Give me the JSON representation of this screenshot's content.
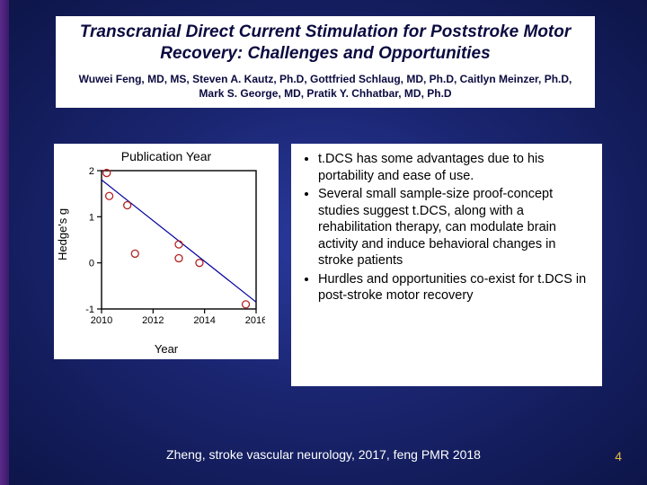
{
  "colors": {
    "bg_center": "#2a3a9e",
    "bg_mid": "#1a2570",
    "bg_edge": "#0d1548",
    "leftbar_a": "#5a2a8a",
    "leftbar_b": "#3a1a6a",
    "panel_bg": "#ffffff",
    "title_text": "#0a0a40",
    "body_text": "#000000",
    "footer_text": "#ffffff",
    "pagenum_text": "#e6b847",
    "chart_marker": "#b22222",
    "chart_line": "#0000a0",
    "chart_axis": "#000000"
  },
  "header": {
    "title": "Transcranial Direct Current Stimulation for Poststroke Motor Recovery: Challenges and Opportunities",
    "authors": "Wuwei Feng, MD, MS, Steven A. Kautz, Ph.D, Gottfried Schlaug, MD, Ph.D, Caitlyn Meinzer, Ph.D, Mark S. George, MD, Pratik Y. Chhatbar, MD, Ph.D"
  },
  "chart": {
    "type": "scatter",
    "title": "Publication Year",
    "xlabel": "Year",
    "ylabel": "Hedge's g",
    "xlim": [
      2010,
      2016
    ],
    "ylim": [
      -1,
      2
    ],
    "xticks": [
      2010,
      2012,
      2014,
      2016
    ],
    "yticks": [
      -1,
      0,
      1,
      2
    ],
    "points": [
      {
        "x": 2010.2,
        "y": 1.95
      },
      {
        "x": 2010.3,
        "y": 1.45
      },
      {
        "x": 2011.0,
        "y": 1.25
      },
      {
        "x": 2011.3,
        "y": 0.2
      },
      {
        "x": 2013.0,
        "y": 0.4
      },
      {
        "x": 2013.0,
        "y": 0.1
      },
      {
        "x": 2013.8,
        "y": 0.0
      },
      {
        "x": 2015.6,
        "y": -0.9
      }
    ],
    "fit_line": {
      "x1": 2010,
      "y1": 1.8,
      "x2": 2016,
      "y2": -0.85
    },
    "marker_radius": 4,
    "line_width": 1.2,
    "axis_fontsize": 11,
    "title_fontsize": 14,
    "label_fontsize": 13
  },
  "bullets": [
    "t.DCS has some advantages due to his portability and ease of use.",
    "Several small sample-size proof-concept studies suggest t.DCS, along with a rehabilitation therapy, can modulate brain activity and induce behavioral changes in stroke patients",
    "Hurdles and opportunities co-exist for t.DCS in post-stroke motor recovery"
  ],
  "footer": {
    "citation": "Zheng, stroke vascular neurology, 2017, feng PMR 2018",
    "page_number": "4"
  }
}
